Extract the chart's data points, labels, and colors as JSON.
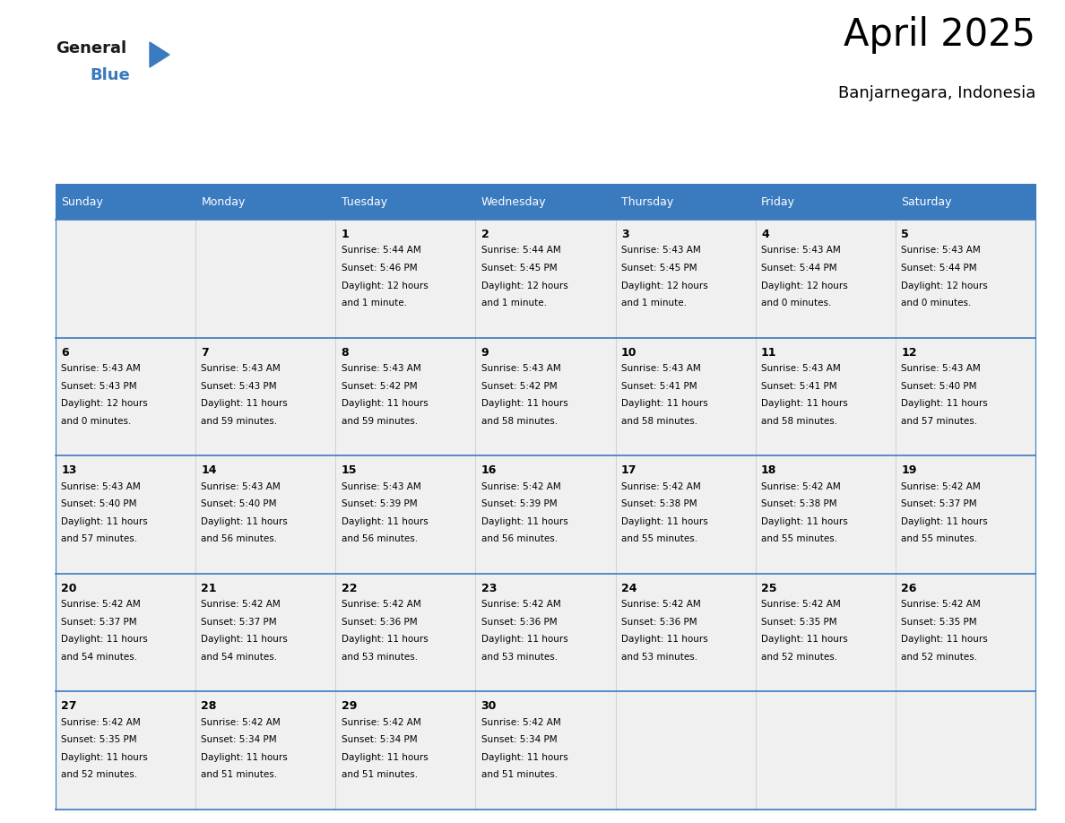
{
  "title": "April 2025",
  "subtitle": "Banjarnegara, Indonesia",
  "header_bg": "#3a7abf",
  "header_text_color": "#ffffff",
  "cell_bg": "#f0f0f0",
  "border_color": "#3a7abf",
  "row_line_color": "#3a7abf",
  "col_line_color": "#cccccc",
  "days_of_week": [
    "Sunday",
    "Monday",
    "Tuesday",
    "Wednesday",
    "Thursday",
    "Friday",
    "Saturday"
  ],
  "logo_general_color": "#1a1a1a",
  "logo_blue_color": "#3a7abf",
  "calendar": [
    [
      {
        "day": "",
        "sunrise": "",
        "sunset": "",
        "daylight_line1": "",
        "daylight_line2": ""
      },
      {
        "day": "",
        "sunrise": "",
        "sunset": "",
        "daylight_line1": "",
        "daylight_line2": ""
      },
      {
        "day": "1",
        "sunrise": "Sunrise: 5:44 AM",
        "sunset": "Sunset: 5:46 PM",
        "daylight_line1": "Daylight: 12 hours",
        "daylight_line2": "and 1 minute."
      },
      {
        "day": "2",
        "sunrise": "Sunrise: 5:44 AM",
        "sunset": "Sunset: 5:45 PM",
        "daylight_line1": "Daylight: 12 hours",
        "daylight_line2": "and 1 minute."
      },
      {
        "day": "3",
        "sunrise": "Sunrise: 5:43 AM",
        "sunset": "Sunset: 5:45 PM",
        "daylight_line1": "Daylight: 12 hours",
        "daylight_line2": "and 1 minute."
      },
      {
        "day": "4",
        "sunrise": "Sunrise: 5:43 AM",
        "sunset": "Sunset: 5:44 PM",
        "daylight_line1": "Daylight: 12 hours",
        "daylight_line2": "and 0 minutes."
      },
      {
        "day": "5",
        "sunrise": "Sunrise: 5:43 AM",
        "sunset": "Sunset: 5:44 PM",
        "daylight_line1": "Daylight: 12 hours",
        "daylight_line2": "and 0 minutes."
      }
    ],
    [
      {
        "day": "6",
        "sunrise": "Sunrise: 5:43 AM",
        "sunset": "Sunset: 5:43 PM",
        "daylight_line1": "Daylight: 12 hours",
        "daylight_line2": "and 0 minutes."
      },
      {
        "day": "7",
        "sunrise": "Sunrise: 5:43 AM",
        "sunset": "Sunset: 5:43 PM",
        "daylight_line1": "Daylight: 11 hours",
        "daylight_line2": "and 59 minutes."
      },
      {
        "day": "8",
        "sunrise": "Sunrise: 5:43 AM",
        "sunset": "Sunset: 5:42 PM",
        "daylight_line1": "Daylight: 11 hours",
        "daylight_line2": "and 59 minutes."
      },
      {
        "day": "9",
        "sunrise": "Sunrise: 5:43 AM",
        "sunset": "Sunset: 5:42 PM",
        "daylight_line1": "Daylight: 11 hours",
        "daylight_line2": "and 58 minutes."
      },
      {
        "day": "10",
        "sunrise": "Sunrise: 5:43 AM",
        "sunset": "Sunset: 5:41 PM",
        "daylight_line1": "Daylight: 11 hours",
        "daylight_line2": "and 58 minutes."
      },
      {
        "day": "11",
        "sunrise": "Sunrise: 5:43 AM",
        "sunset": "Sunset: 5:41 PM",
        "daylight_line1": "Daylight: 11 hours",
        "daylight_line2": "and 58 minutes."
      },
      {
        "day": "12",
        "sunrise": "Sunrise: 5:43 AM",
        "sunset": "Sunset: 5:40 PM",
        "daylight_line1": "Daylight: 11 hours",
        "daylight_line2": "and 57 minutes."
      }
    ],
    [
      {
        "day": "13",
        "sunrise": "Sunrise: 5:43 AM",
        "sunset": "Sunset: 5:40 PM",
        "daylight_line1": "Daylight: 11 hours",
        "daylight_line2": "and 57 minutes."
      },
      {
        "day": "14",
        "sunrise": "Sunrise: 5:43 AM",
        "sunset": "Sunset: 5:40 PM",
        "daylight_line1": "Daylight: 11 hours",
        "daylight_line2": "and 56 minutes."
      },
      {
        "day": "15",
        "sunrise": "Sunrise: 5:43 AM",
        "sunset": "Sunset: 5:39 PM",
        "daylight_line1": "Daylight: 11 hours",
        "daylight_line2": "and 56 minutes."
      },
      {
        "day": "16",
        "sunrise": "Sunrise: 5:42 AM",
        "sunset": "Sunset: 5:39 PM",
        "daylight_line1": "Daylight: 11 hours",
        "daylight_line2": "and 56 minutes."
      },
      {
        "day": "17",
        "sunrise": "Sunrise: 5:42 AM",
        "sunset": "Sunset: 5:38 PM",
        "daylight_line1": "Daylight: 11 hours",
        "daylight_line2": "and 55 minutes."
      },
      {
        "day": "18",
        "sunrise": "Sunrise: 5:42 AM",
        "sunset": "Sunset: 5:38 PM",
        "daylight_line1": "Daylight: 11 hours",
        "daylight_line2": "and 55 minutes."
      },
      {
        "day": "19",
        "sunrise": "Sunrise: 5:42 AM",
        "sunset": "Sunset: 5:37 PM",
        "daylight_line1": "Daylight: 11 hours",
        "daylight_line2": "and 55 minutes."
      }
    ],
    [
      {
        "day": "20",
        "sunrise": "Sunrise: 5:42 AM",
        "sunset": "Sunset: 5:37 PM",
        "daylight_line1": "Daylight: 11 hours",
        "daylight_line2": "and 54 minutes."
      },
      {
        "day": "21",
        "sunrise": "Sunrise: 5:42 AM",
        "sunset": "Sunset: 5:37 PM",
        "daylight_line1": "Daylight: 11 hours",
        "daylight_line2": "and 54 minutes."
      },
      {
        "day": "22",
        "sunrise": "Sunrise: 5:42 AM",
        "sunset": "Sunset: 5:36 PM",
        "daylight_line1": "Daylight: 11 hours",
        "daylight_line2": "and 53 minutes."
      },
      {
        "day": "23",
        "sunrise": "Sunrise: 5:42 AM",
        "sunset": "Sunset: 5:36 PM",
        "daylight_line1": "Daylight: 11 hours",
        "daylight_line2": "and 53 minutes."
      },
      {
        "day": "24",
        "sunrise": "Sunrise: 5:42 AM",
        "sunset": "Sunset: 5:36 PM",
        "daylight_line1": "Daylight: 11 hours",
        "daylight_line2": "and 53 minutes."
      },
      {
        "day": "25",
        "sunrise": "Sunrise: 5:42 AM",
        "sunset": "Sunset: 5:35 PM",
        "daylight_line1": "Daylight: 11 hours",
        "daylight_line2": "and 52 minutes."
      },
      {
        "day": "26",
        "sunrise": "Sunrise: 5:42 AM",
        "sunset": "Sunset: 5:35 PM",
        "daylight_line1": "Daylight: 11 hours",
        "daylight_line2": "and 52 minutes."
      }
    ],
    [
      {
        "day": "27",
        "sunrise": "Sunrise: 5:42 AM",
        "sunset": "Sunset: 5:35 PM",
        "daylight_line1": "Daylight: 11 hours",
        "daylight_line2": "and 52 minutes."
      },
      {
        "day": "28",
        "sunrise": "Sunrise: 5:42 AM",
        "sunset": "Sunset: 5:34 PM",
        "daylight_line1": "Daylight: 11 hours",
        "daylight_line2": "and 51 minutes."
      },
      {
        "day": "29",
        "sunrise": "Sunrise: 5:42 AM",
        "sunset": "Sunset: 5:34 PM",
        "daylight_line1": "Daylight: 11 hours",
        "daylight_line2": "and 51 minutes."
      },
      {
        "day": "30",
        "sunrise": "Sunrise: 5:42 AM",
        "sunset": "Sunset: 5:34 PM",
        "daylight_line1": "Daylight: 11 hours",
        "daylight_line2": "and 51 minutes."
      },
      {
        "day": "",
        "sunrise": "",
        "sunset": "",
        "daylight_line1": "",
        "daylight_line2": ""
      },
      {
        "day": "",
        "sunrise": "",
        "sunset": "",
        "daylight_line1": "",
        "daylight_line2": ""
      },
      {
        "day": "",
        "sunrise": "",
        "sunset": "",
        "daylight_line1": "",
        "daylight_line2": ""
      }
    ]
  ]
}
